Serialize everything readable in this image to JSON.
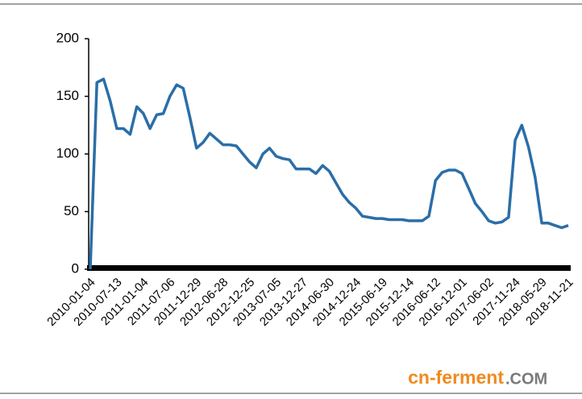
{
  "chart_data": {
    "type": "line",
    "categories": [
      "2010-01-04",
      null,
      null,
      null,
      "2010-07-13",
      null,
      null,
      null,
      "2011-01-04",
      null,
      null,
      null,
      "2011-07-06",
      null,
      null,
      null,
      "2011-12-29",
      null,
      null,
      null,
      "2012-06-28",
      null,
      null,
      null,
      "2012-12-25",
      null,
      null,
      null,
      "2013-07-05",
      null,
      null,
      null,
      "2013-12-27",
      null,
      null,
      null,
      "2014-06-30",
      null,
      null,
      null,
      "2014-12-24",
      null,
      null,
      null,
      "2015-06-19",
      null,
      null,
      null,
      "2015-12-14",
      null,
      null,
      null,
      "2016-06-12",
      null,
      null,
      null,
      "2016-12-01",
      null,
      null,
      null,
      "2017-06-02",
      null,
      null,
      null,
      "2017-11-24",
      null,
      null,
      null,
      "2018-05-29",
      null,
      null,
      null,
      "2018-11-21"
    ],
    "series": [
      {
        "color": "#2a6ea8",
        "values": [
          0,
          162,
          165,
          146,
          122,
          122,
          117,
          141,
          135,
          122,
          134,
          135,
          150,
          160,
          157,
          132,
          105,
          110,
          118,
          113,
          108,
          108,
          107,
          100,
          93,
          88,
          100,
          105,
          98,
          96,
          95,
          87,
          87,
          87,
          83,
          90,
          85,
          75,
          65,
          58,
          53,
          46,
          45,
          44,
          44,
          43,
          43,
          43,
          42,
          42,
          42,
          46,
          77,
          84,
          86,
          86,
          83,
          70,
          57,
          50,
          42,
          40,
          41,
          45,
          112,
          125,
          106,
          80,
          40,
          40,
          38,
          36,
          38
        ]
      }
    ],
    "ylim": [
      0,
      200
    ],
    "yticks": [
      0,
      50,
      100,
      150,
      200
    ],
    "watermark": [
      "cn-ferment",
      ".COM"
    ]
  }
}
